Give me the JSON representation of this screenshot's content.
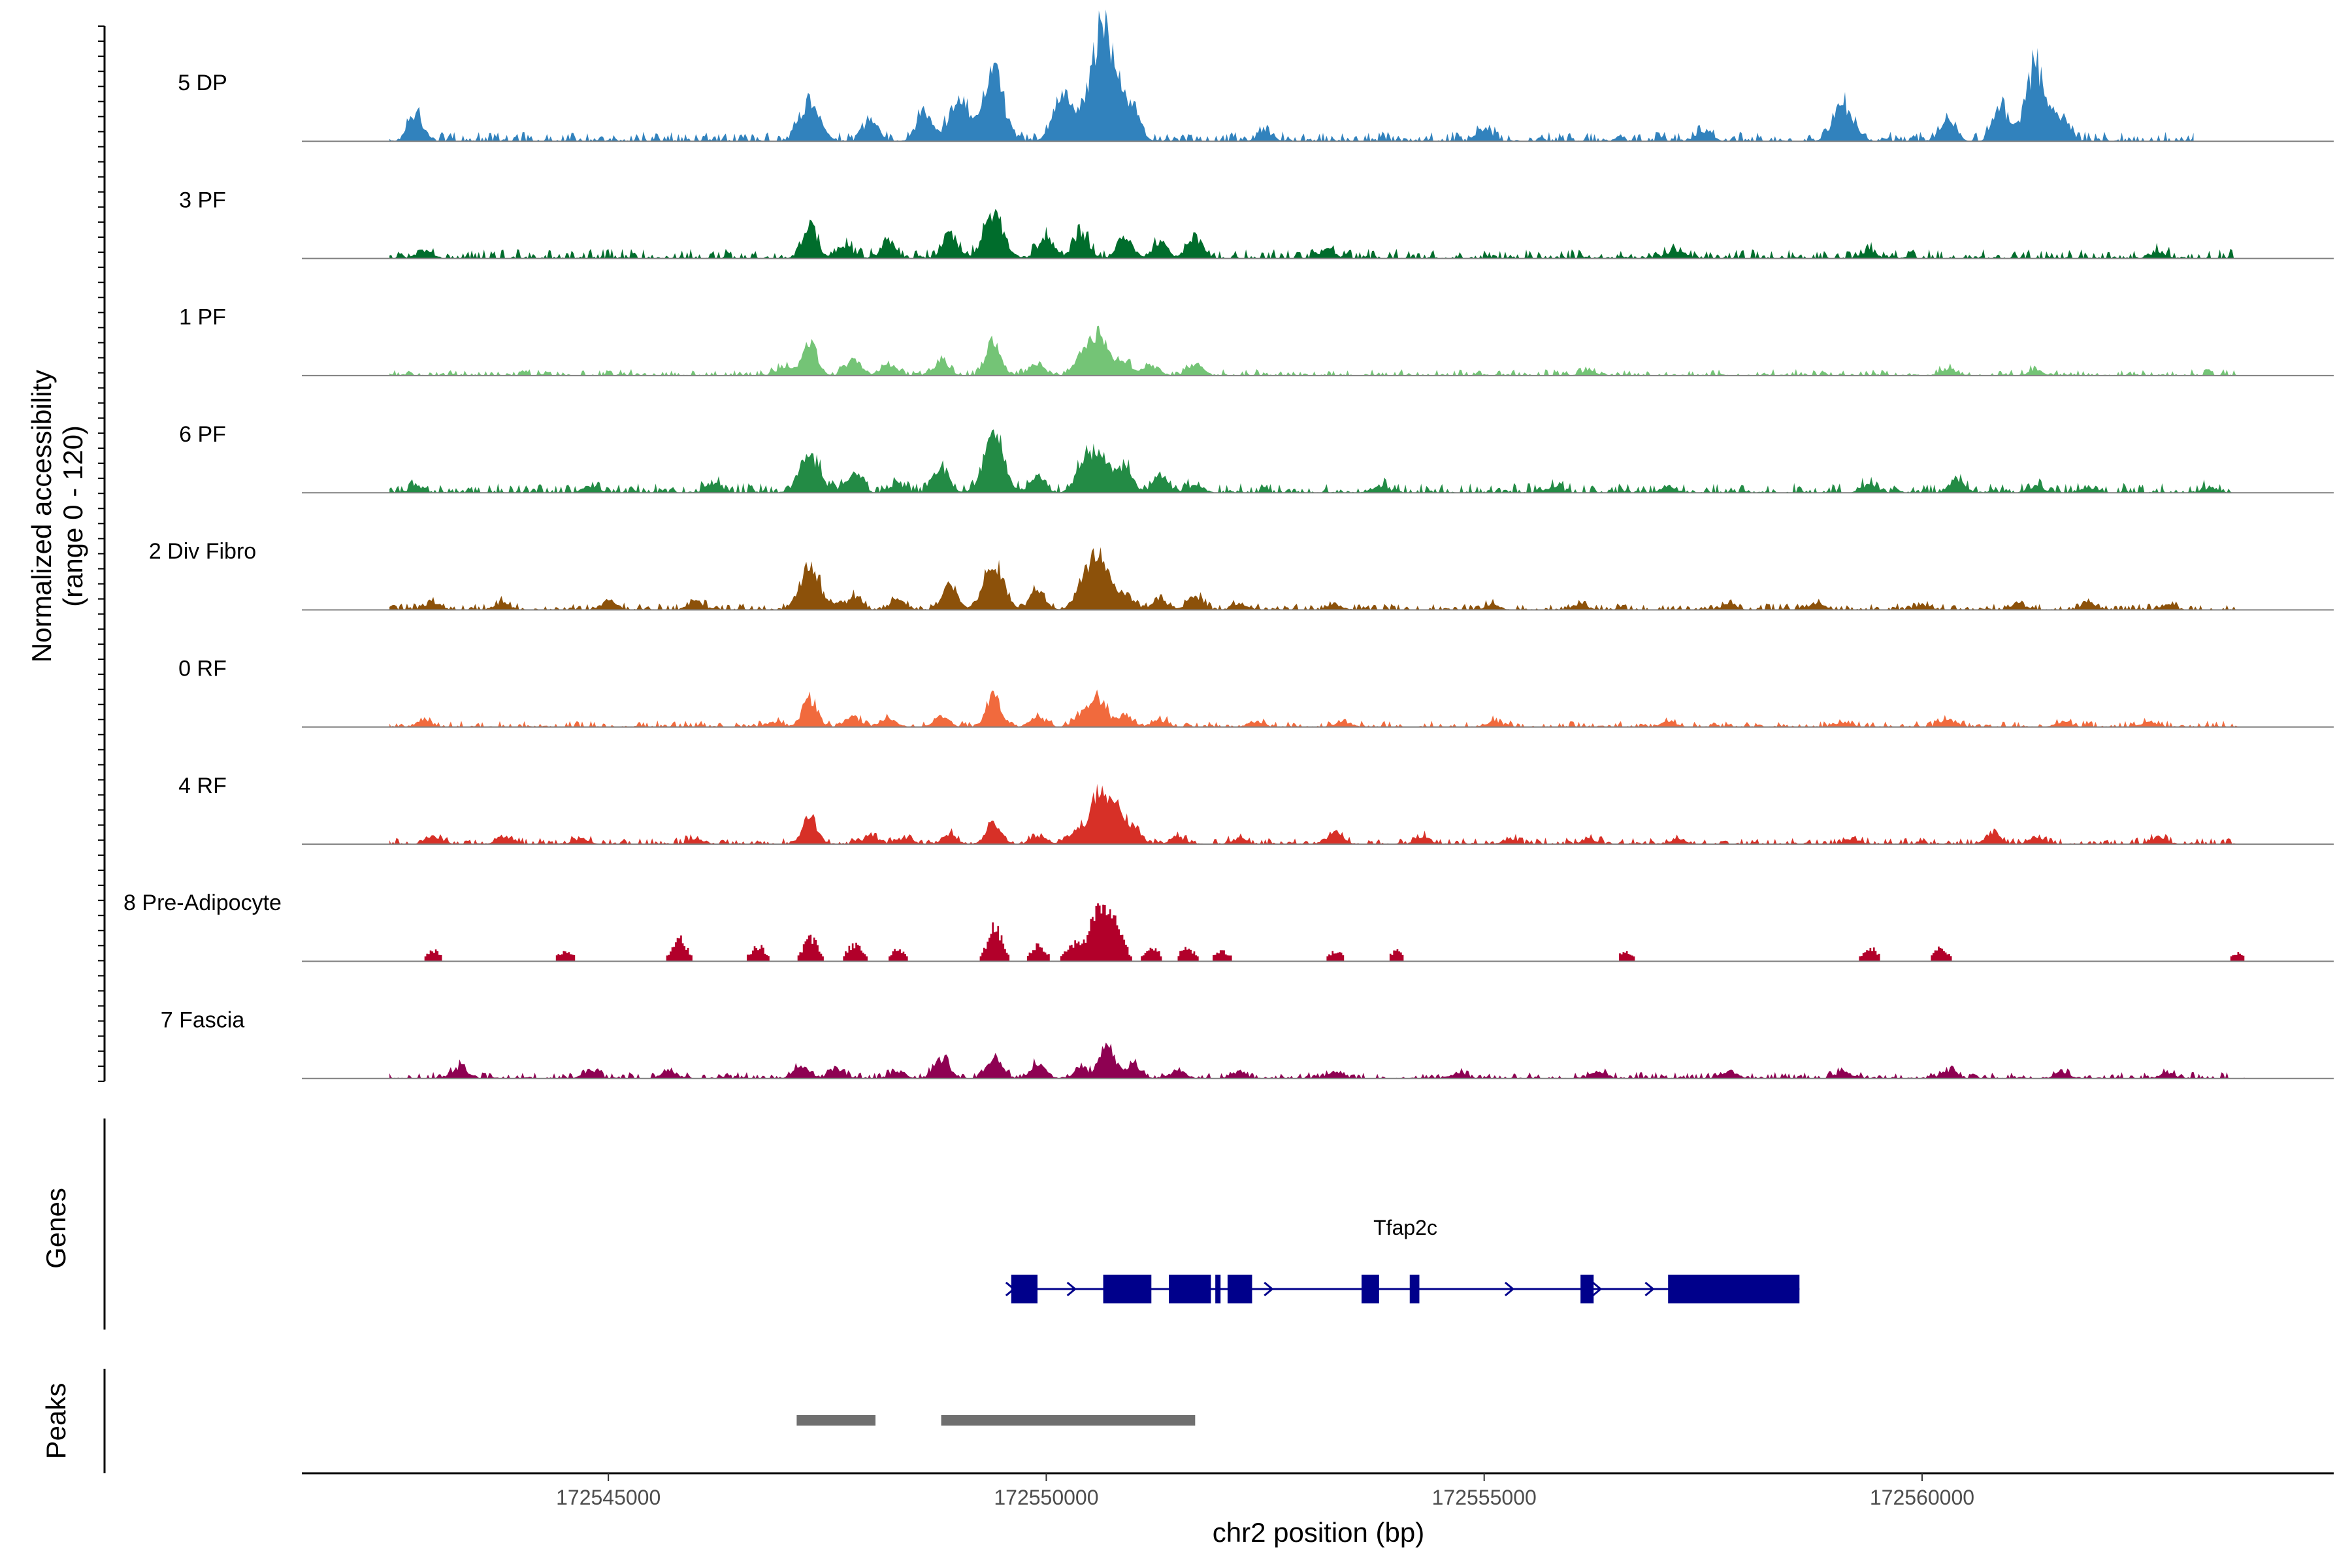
{
  "chart_data": {
    "type": "area",
    "title": "",
    "chromosome": "chr2",
    "xlabel": "chr2 position (bp)",
    "ylabel_line1": "Normalized accessibility",
    "ylabel_line2": "(range 0 - 120)",
    "y_range": [
      0,
      120
    ],
    "xlim": [
      172541500,
      172564700
    ],
    "x_ticks": [
      172545000,
      172550000,
      172555000,
      172560000
    ],
    "x_tick_labels": [
      "172545000",
      "172550000",
      "172555000",
      "172560000"
    ],
    "tracks": [
      {
        "name": "5 DP",
        "color": "#3182bd",
        "peaks": [
          [
            172542800,
            15
          ],
          [
            172547300,
            22
          ],
          [
            172548000,
            12
          ],
          [
            172548600,
            18
          ],
          [
            172549000,
            25
          ],
          [
            172549400,
            40
          ],
          [
            172550200,
            30
          ],
          [
            172550600,
            60
          ],
          [
            172550800,
            28
          ],
          [
            172551000,
            14
          ],
          [
            172552500,
            6
          ],
          [
            172555000,
            8
          ],
          [
            172557500,
            6
          ],
          [
            172559100,
            22
          ],
          [
            172560300,
            12
          ],
          [
            172560900,
            20
          ],
          [
            172561300,
            45
          ],
          [
            172561600,
            12
          ]
        ],
        "noise_range": [
          172542500,
          172563100
        ],
        "noise_height": 3
      },
      {
        "name": "3 PF",
        "color": "#006d2c",
        "peaks": [
          [
            172542900,
            5
          ],
          [
            172547300,
            20
          ],
          [
            172547700,
            8
          ],
          [
            172548200,
            10
          ],
          [
            172548900,
            14
          ],
          [
            172549400,
            27
          ],
          [
            172550000,
            14
          ],
          [
            172550400,
            16
          ],
          [
            172550900,
            12
          ],
          [
            172551300,
            9
          ],
          [
            172551700,
            13
          ],
          [
            172553200,
            4
          ],
          [
            172557200,
            5
          ],
          [
            172559400,
            4
          ],
          [
            172562700,
            4
          ]
        ],
        "noise_range": [
          172542500,
          172563600
        ],
        "noise_height": 3
      },
      {
        "name": "1 PF",
        "color": "#74c476",
        "peaks": [
          [
            172547000,
            5
          ],
          [
            172547300,
            20
          ],
          [
            172547800,
            9
          ],
          [
            172548200,
            7
          ],
          [
            172548800,
            8
          ],
          [
            172549400,
            20
          ],
          [
            172549900,
            7
          ],
          [
            172550400,
            10
          ],
          [
            172550600,
            22
          ],
          [
            172550900,
            8
          ],
          [
            172551200,
            6
          ],
          [
            172551700,
            7
          ],
          [
            172556200,
            3
          ],
          [
            172560300,
            4
          ],
          [
            172561300,
            3
          ]
        ],
        "noise_range": [
          172542500,
          172563600
        ],
        "noise_height": 2
      },
      {
        "name": "6 PF",
        "color": "#238b45",
        "peaks": [
          [
            172542800,
            3
          ],
          [
            172544800,
            4
          ],
          [
            172546200,
            6
          ],
          [
            172547300,
            22
          ],
          [
            172547800,
            12
          ],
          [
            172548300,
            5
          ],
          [
            172548800,
            16
          ],
          [
            172549400,
            33
          ],
          [
            172549900,
            9
          ],
          [
            172550400,
            12
          ],
          [
            172550600,
            25
          ],
          [
            172550900,
            16
          ],
          [
            172551300,
            9
          ],
          [
            172551700,
            4
          ],
          [
            172553800,
            4
          ],
          [
            172555800,
            3
          ],
          [
            172557100,
            3
          ],
          [
            172559400,
            5
          ],
          [
            172560400,
            7
          ],
          [
            172561300,
            4
          ],
          [
            172561900,
            3
          ],
          [
            172563300,
            3
          ]
        ],
        "noise_range": [
          172542500,
          172563600
        ],
        "noise_height": 3
      },
      {
        "name": "2 Div Fibro",
        "color": "#8c510a",
        "peaks": [
          [
            172543000,
            4
          ],
          [
            172543800,
            4
          ],
          [
            172545000,
            5
          ],
          [
            172546000,
            5
          ],
          [
            172547300,
            25
          ],
          [
            172547800,
            8
          ],
          [
            172548300,
            6
          ],
          [
            172548900,
            14
          ],
          [
            172549400,
            28
          ],
          [
            172549900,
            12
          ],
          [
            172550400,
            12
          ],
          [
            172550600,
            33
          ],
          [
            172550900,
            10
          ],
          [
            172551300,
            6
          ],
          [
            172551700,
            8
          ],
          [
            172552200,
            3
          ],
          [
            172553300,
            3
          ],
          [
            172555100,
            3
          ],
          [
            172556100,
            3
          ],
          [
            172557800,
            3
          ],
          [
            172558800,
            4
          ],
          [
            172560000,
            3
          ],
          [
            172561100,
            3
          ],
          [
            172561900,
            4
          ],
          [
            172562800,
            3
          ]
        ],
        "noise_range": [
          172542500,
          172563600
        ],
        "noise_height": 2
      },
      {
        "name": "0 RF",
        "color": "#f16a3d",
        "peaks": [
          [
            172542900,
            4
          ],
          [
            172546900,
            3
          ],
          [
            172547300,
            16
          ],
          [
            172547800,
            6
          ],
          [
            172548200,
            5
          ],
          [
            172548800,
            6
          ],
          [
            172549400,
            18
          ],
          [
            172549900,
            6
          ],
          [
            172550400,
            8
          ],
          [
            172550600,
            17
          ],
          [
            172550900,
            7
          ],
          [
            172551300,
            4
          ],
          [
            172552400,
            3
          ],
          [
            172553400,
            3
          ],
          [
            172555100,
            3
          ],
          [
            172557100,
            3
          ],
          [
            172559100,
            3
          ],
          [
            172560300,
            4
          ],
          [
            172561600,
            3
          ],
          [
            172562600,
            3
          ]
        ],
        "noise_range": [
          172542500,
          172563600
        ],
        "noise_height": 2
      },
      {
        "name": "4 RF",
        "color": "#d73027",
        "peaks": [
          [
            172543000,
            5
          ],
          [
            172543800,
            4
          ],
          [
            172544700,
            3
          ],
          [
            172546000,
            3
          ],
          [
            172547300,
            17
          ],
          [
            172548000,
            5
          ],
          [
            172548400,
            3
          ],
          [
            172548900,
            5
          ],
          [
            172549400,
            12
          ],
          [
            172549900,
            5
          ],
          [
            172550300,
            6
          ],
          [
            172550600,
            30
          ],
          [
            172550800,
            18
          ],
          [
            172551000,
            10
          ],
          [
            172551500,
            4
          ],
          [
            172552200,
            3
          ],
          [
            172553300,
            6
          ],
          [
            172554300,
            4
          ],
          [
            172555300,
            3
          ],
          [
            172556200,
            3
          ],
          [
            172557200,
            3
          ],
          [
            172559200,
            3
          ],
          [
            172560800,
            6
          ],
          [
            172561300,
            4
          ],
          [
            172562700,
            4
          ]
        ],
        "noise_range": [
          172542500,
          172563600
        ],
        "noise_height": 2
      },
      {
        "name": "8 Pre-Adipocyte",
        "color": "#b2002a",
        "peaks": [
          [
            172543000,
            6
          ],
          [
            172544500,
            6
          ],
          [
            172545800,
            14
          ],
          [
            172546700,
            9
          ],
          [
            172547300,
            14
          ],
          [
            172547800,
            10
          ],
          [
            172548300,
            7
          ],
          [
            172549400,
            20
          ],
          [
            172549900,
            10
          ],
          [
            172550300,
            10
          ],
          [
            172550600,
            30
          ],
          [
            172550800,
            18
          ],
          [
            172551200,
            8
          ],
          [
            172551600,
            8
          ],
          [
            172552000,
            6
          ],
          [
            172553300,
            6
          ],
          [
            172554000,
            6
          ],
          [
            172556600,
            6
          ],
          [
            172559400,
            8
          ],
          [
            172560200,
            8
          ],
          [
            172563600,
            5
          ]
        ],
        "noise_range": [
          172542500,
          172563700
        ],
        "noise_height": 0,
        "blocky": true
      },
      {
        "name": "7 Fascia",
        "color": "#8e0152",
        "peaks": [
          [
            172543300,
            7
          ],
          [
            172544800,
            5
          ],
          [
            172545700,
            4
          ],
          [
            172547200,
            7
          ],
          [
            172547600,
            5
          ],
          [
            172548300,
            4
          ],
          [
            172548800,
            12
          ],
          [
            172549400,
            13
          ],
          [
            172549900,
            8
          ],
          [
            172550400,
            6
          ],
          [
            172550700,
            20
          ],
          [
            172551000,
            8
          ],
          [
            172551500,
            5
          ],
          [
            172552200,
            4
          ],
          [
            172553300,
            4
          ],
          [
            172554700,
            3
          ],
          [
            172556300,
            4
          ],
          [
            172557800,
            4
          ],
          [
            172559100,
            4
          ],
          [
            172560300,
            5
          ],
          [
            172561600,
            3
          ],
          [
            172562800,
            3
          ]
        ],
        "noise_range": [
          172542500,
          172563700
        ],
        "noise_height": 2
      }
    ],
    "genes": [
      {
        "name": "Tfap2c",
        "strand": "+",
        "start": 172549600,
        "end": 172558600,
        "exons": [
          [
            172549600,
            172549900
          ],
          [
            172550650,
            172551200
          ],
          [
            172551400,
            172551880
          ],
          [
            172551930,
            172551990
          ],
          [
            172552070,
            172552350
          ],
          [
            172553600,
            172553800
          ],
          [
            172554150,
            172554260
          ],
          [
            172556100,
            172556250
          ],
          [
            172557100,
            172558600
          ]
        ],
        "arrows": [
          172549600,
          172550300,
          172552550,
          172555300,
          172556300,
          172556900
        ]
      }
    ],
    "peaks_track": [
      [
        172547150,
        172548050
      ],
      [
        172548800,
        172551700
      ]
    ],
    "panel_labels": {
      "genes": "Genes",
      "peaks": "Peaks"
    },
    "gene_color": "#00008b",
    "peak_color": "#6f6f6f",
    "axis_line_color": "#808080"
  }
}
